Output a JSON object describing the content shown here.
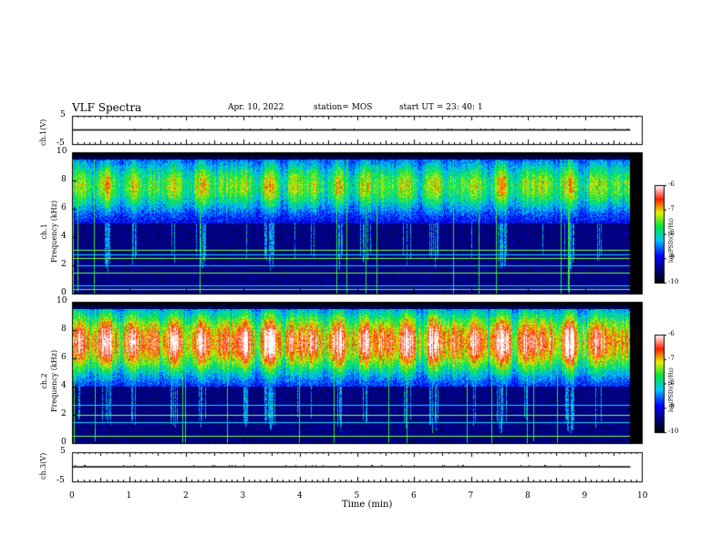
{
  "header": {
    "title": "VLF Spectra",
    "date": "Apr. 10, 2022",
    "station": "station= MOS",
    "start_ut": "start  UT  =   23: 40: 1"
  },
  "chart_data": [
    {
      "type": "line",
      "name": "ch1-voltage",
      "ylabel": "ch.1(V)",
      "ylim": [
        -5,
        5
      ],
      "y_ticks": [
        "5",
        "-5"
      ],
      "x": [
        0,
        10
      ],
      "values": [
        0,
        0
      ]
    },
    {
      "type": "heatmap",
      "name": "ch1-spectrogram",
      "ylabel": "ch.1\nFrequency (kHz)",
      "ylim": [
        0,
        10
      ],
      "y_ticks": [
        "0",
        "2",
        "4",
        "6",
        "8",
        "10"
      ],
      "colorbar": {
        "min": -10,
        "max": -6,
        "ticks": [
          "-6",
          "-7",
          "-8",
          "-9",
          "-10"
        ],
        "label": "log(PSD)(V²/Hz)"
      },
      "strong_band_khz": [
        5.0,
        9.5
      ],
      "line_freqs_khz": [
        0.3,
        0.6,
        1.5,
        2.0,
        2.5,
        2.8,
        3.1
      ]
    },
    {
      "type": "heatmap",
      "name": "ch2-spectrogram",
      "ylabel": "ch.2\nFrequency (kHz)",
      "ylim": [
        0,
        10
      ],
      "y_ticks": [
        "0",
        "2",
        "4",
        "6",
        "8",
        "10"
      ],
      "colorbar": {
        "min": -10,
        "max": -6,
        "ticks": [
          "-6",
          "-7",
          "-8",
          "-9",
          "-10"
        ],
        "label": "log(PSD)(V²/Hz)"
      },
      "strong_band_khz": [
        4.0,
        9.5
      ],
      "line_freqs_khz": [
        0.5,
        1.5,
        2.0,
        2.7
      ]
    },
    {
      "type": "line",
      "name": "ch3-voltage",
      "ylabel": "ch.3(V)",
      "ylim": [
        -5,
        5
      ],
      "y_ticks": [
        "5",
        "-5"
      ],
      "x": [
        0,
        10
      ],
      "values": [
        0,
        0
      ]
    }
  ],
  "x_axis": {
    "label": "Time  (min)",
    "xlim": [
      0,
      10
    ],
    "ticks": [
      "0",
      "1",
      "2",
      "3",
      "4",
      "5",
      "6",
      "7",
      "8",
      "9",
      "10"
    ]
  },
  "colors": {
    "background": "#000000",
    "colormap": [
      "#ffffff",
      "#ff0000",
      "#ffff00",
      "#00ff00",
      "#00ffff",
      "#0000ff",
      "#000080",
      "#000000"
    ]
  }
}
